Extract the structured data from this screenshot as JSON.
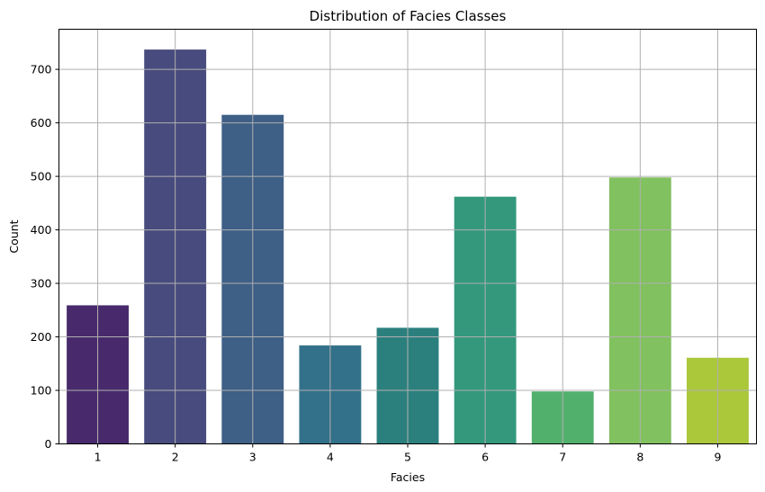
{
  "chart_data": {
    "type": "bar",
    "title": "Distribution of Facies Classes",
    "xlabel": "Facies",
    "ylabel": "Count",
    "categories": [
      "1",
      "2",
      "3",
      "4",
      "5",
      "6",
      "7",
      "8",
      "9"
    ],
    "values": [
      259,
      737,
      615,
      184,
      217,
      462,
      98,
      498,
      161
    ],
    "colors": [
      "#482a6c",
      "#484b7d",
      "#3e5f86",
      "#33718a",
      "#2b807e",
      "#33987c",
      "#52b06d",
      "#81c15f",
      "#abc73a"
    ],
    "ylim": [
      0,
      775
    ],
    "yticks": [
      0,
      100,
      200,
      300,
      400,
      500,
      600,
      700
    ],
    "grid": true,
    "legend": "none"
  }
}
